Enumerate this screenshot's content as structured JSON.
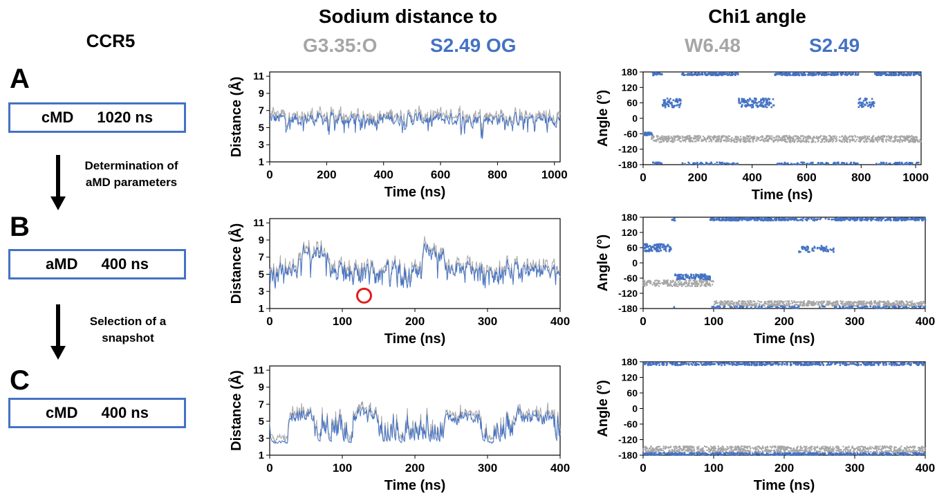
{
  "workflow": {
    "title": "CCR5",
    "stages": [
      {
        "letter": "A",
        "method": "cMD",
        "duration": "1020 ns"
      },
      {
        "letter": "B",
        "method": "aMD",
        "duration": "400 ns"
      },
      {
        "letter": "C",
        "method": "cMD",
        "duration": "400 ns"
      }
    ],
    "steps": [
      {
        "line1": "Determination of",
        "line2": "aMD parameters"
      },
      {
        "line1": "Selection of a",
        "line2": "snapshot"
      }
    ]
  },
  "columns": {
    "distance": {
      "title": "Sodium distance to",
      "legend_gray": "G3.35:O",
      "legend_blue": "S2.49 OG"
    },
    "angle": {
      "title": "Chi1 angle",
      "legend_gray": "W6.48",
      "legend_blue": "S2.49"
    }
  },
  "colors": {
    "gray": "#a6a6a6",
    "blue": "#4472c4",
    "marker": "#e31a1c"
  },
  "chart_data": [
    {
      "type": "line",
      "ylabel": "Distance (Å)",
      "xlabel": "Time (ns)",
      "xlim": [
        0,
        1020
      ],
      "xticks": [
        0,
        200,
        400,
        600,
        800,
        1000
      ],
      "ylim": [
        1,
        11.5
      ],
      "yticks": [
        1,
        3,
        5,
        7,
        9,
        11
      ],
      "series": [
        {
          "name": "G3.35:O",
          "color": "gray"
        },
        {
          "name": "S2.49 OG",
          "color": "blue"
        }
      ]
    },
    {
      "type": "scatter",
      "ylabel": "Angle (°)",
      "xlabel": "Time (ns)",
      "xlim": [
        0,
        1020
      ],
      "xticks": [
        0,
        200,
        400,
        600,
        800,
        1000
      ],
      "ylim": [
        -180,
        180
      ],
      "yticks": [
        -180,
        -120,
        -60,
        0,
        60,
        120,
        180
      ],
      "series": [
        {
          "name": "W6.48",
          "color": "gray"
        },
        {
          "name": "S2.49",
          "color": "blue"
        }
      ]
    },
    {
      "type": "line",
      "ylabel": "Distance (Å)",
      "xlabel": "Time (ns)",
      "xlim": [
        0,
        400
      ],
      "xticks": [
        0,
        100,
        200,
        300,
        400
      ],
      "ylim": [
        1,
        11.5
      ],
      "yticks": [
        1,
        3,
        5,
        7,
        9,
        11
      ],
      "series": [
        {
          "name": "G3.35:O",
          "color": "gray"
        },
        {
          "name": "S2.49 OG",
          "color": "blue"
        }
      ],
      "annotation": {
        "x": 130,
        "y": 2.5,
        "shape": "circle"
      }
    },
    {
      "type": "scatter",
      "ylabel": "Angle (°)",
      "xlabel": "Time (ns)",
      "xlim": [
        0,
        400
      ],
      "xticks": [
        0,
        100,
        200,
        300,
        400
      ],
      "ylim": [
        -180,
        180
      ],
      "yticks": [
        -180,
        -120,
        -60,
        0,
        60,
        120,
        180
      ],
      "series": [
        {
          "name": "W6.48",
          "color": "gray"
        },
        {
          "name": "S2.49",
          "color": "blue"
        }
      ]
    },
    {
      "type": "line",
      "ylabel": "Distance (Å)",
      "xlabel": "Time (ns)",
      "xlim": [
        0,
        400
      ],
      "xticks": [
        0,
        100,
        200,
        300,
        400
      ],
      "ylim": [
        1,
        11.5
      ],
      "yticks": [
        1,
        3,
        5,
        7,
        9,
        11
      ],
      "series": [
        {
          "name": "G3.35:O",
          "color": "gray"
        },
        {
          "name": "S2.49 OG",
          "color": "blue"
        }
      ]
    },
    {
      "type": "scatter",
      "ylabel": "Angle (°)",
      "xlabel": "Time (ns)",
      "xlim": [
        0,
        400
      ],
      "xticks": [
        0,
        100,
        200,
        300,
        400
      ],
      "ylim": [
        -180,
        180
      ],
      "yticks": [
        -180,
        -120,
        -60,
        0,
        60,
        120,
        180
      ],
      "series": [
        {
          "name": "W6.48",
          "color": "gray"
        },
        {
          "name": "S2.49",
          "color": "blue"
        }
      ]
    }
  ]
}
